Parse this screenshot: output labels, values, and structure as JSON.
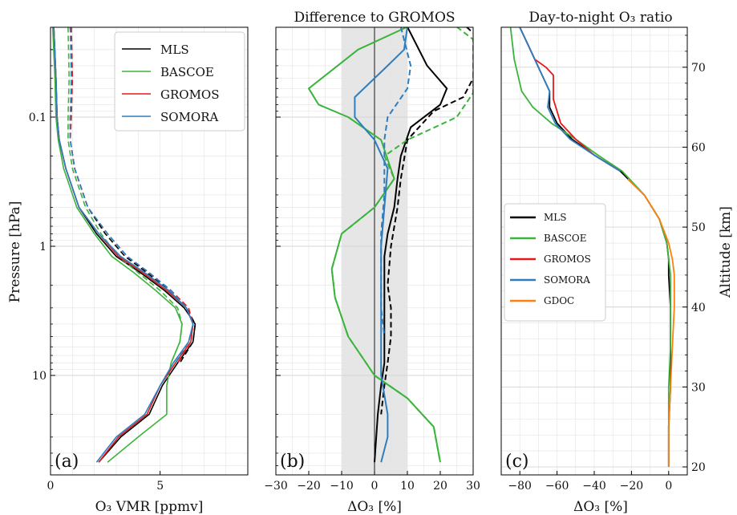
{
  "colors": {
    "MLS": "#000000",
    "BASCOE": "#3cb43c",
    "GROMOS": "#e31a1c",
    "SOMORA": "#2e7ebf",
    "GDOC": "#ff7f0e",
    "shade": "#e6e6e6",
    "grid": "#e3e3e3"
  },
  "panels": {
    "a": {
      "letter": "(a)",
      "title": "",
      "xlabel": "O₃ VMR [ppmv]",
      "ylabel": "Pressure [hPa]",
      "xticks": [
        "0",
        "5"
      ],
      "yticks": [
        "0.1",
        "1",
        "10"
      ],
      "legend": [
        "MLS",
        "BASCOE",
        "GROMOS",
        "SOMORA"
      ]
    },
    "b": {
      "letter": "(b)",
      "title": "Difference to GROMOS",
      "xlabel": "ΔO₃ [%]",
      "xticks": [
        "−30",
        "−20",
        "−10",
        "0",
        "10",
        "20",
        "30"
      ]
    },
    "c": {
      "letter": "(c)",
      "title": "Day-to-night O₃ ratio",
      "xlabel": "ΔO₃ [%]",
      "ylabel": "Altitude [km]",
      "xticks": [
        "−80",
        "−60",
        "−40",
        "−20",
        "0"
      ],
      "yticks": [
        "20",
        "30",
        "40",
        "50",
        "60",
        "70"
      ],
      "legend": [
        "MLS",
        "BASCOE",
        "GROMOS",
        "SOMORA",
        "GDOC"
      ]
    }
  },
  "chart_data": [
    {
      "panel": "a",
      "type": "line",
      "xlabel": "O₃ VMR [ppmv]",
      "ylabel": "Pressure [hPa]",
      "xlim": [
        0,
        9
      ],
      "ylim": [
        50,
        0.02
      ],
      "yscale": "log",
      "series": [
        {
          "name": "MLS",
          "style": "solid",
          "x": [
            0.15,
            0.25,
            0.3,
            0.4,
            0.7,
            1.3,
            2.1,
            3.0,
            4.1,
            5.2,
            6.1,
            6.6,
            6.5,
            5.8,
            5.1,
            4.5,
            3.2,
            2.2
          ],
          "y": [
            0.02,
            0.05,
            0.1,
            0.15,
            0.25,
            0.5,
            0.8,
            1.2,
            1.6,
            2.2,
            3.0,
            4.0,
            5.5,
            8.0,
            12,
            20,
            30,
            47
          ]
        },
        {
          "name": "MLS",
          "style": "dashed",
          "x": [
            0.9,
            1.0,
            0.9,
            0.9,
            1.1,
            1.7,
            2.5,
            3.4,
            4.4,
            5.4,
            6.2,
            6.6,
            6.5,
            5.9
          ],
          "y": [
            0.02,
            0.05,
            0.1,
            0.15,
            0.25,
            0.5,
            0.8,
            1.2,
            1.6,
            2.2,
            3.0,
            4.0,
            5.5,
            8.0
          ]
        },
        {
          "name": "BASCOE",
          "style": "solid",
          "x": [
            0.1,
            0.2,
            0.25,
            0.35,
            0.6,
            1.2,
            2.0,
            2.8,
            3.8,
            4.8,
            5.7,
            6.0,
            5.9,
            5.5,
            5.3,
            5.3,
            4.0,
            2.6
          ],
          "y": [
            0.02,
            0.05,
            0.1,
            0.15,
            0.25,
            0.5,
            0.8,
            1.2,
            1.6,
            2.2,
            3.0,
            4.0,
            5.5,
            8.0,
            12,
            20,
            30,
            47
          ]
        },
        {
          "name": "BASCOE",
          "style": "dashed",
          "x": [
            0.8,
            0.85,
            0.8,
            0.8,
            1.0,
            1.6,
            2.3,
            3.1,
            4.0,
            5.0,
            5.8,
            6.0,
            5.9,
            5.5
          ],
          "y": [
            0.02,
            0.05,
            0.1,
            0.15,
            0.25,
            0.5,
            0.8,
            1.2,
            1.6,
            2.2,
            3.0,
            4.0,
            5.5,
            8.0
          ]
        },
        {
          "name": "GROMOS",
          "style": "solid",
          "x": [
            0.15,
            0.25,
            0.3,
            0.4,
            0.7,
            1.3,
            2.2,
            3.1,
            4.2,
            5.3,
            6.2,
            6.5,
            6.4,
            5.7,
            5.0,
            4.4,
            3.1,
            2.2
          ],
          "y": [
            0.02,
            0.05,
            0.1,
            0.15,
            0.25,
            0.5,
            0.8,
            1.2,
            1.6,
            2.2,
            3.0,
            4.0,
            5.5,
            8.0,
            12,
            20,
            30,
            47
          ]
        },
        {
          "name": "GROMOS",
          "style": "dashed",
          "x": [
            0.95,
            1.0,
            0.95,
            0.9,
            1.1,
            1.7,
            2.6,
            3.5,
            4.5,
            5.5,
            6.3,
            6.5,
            6.4,
            5.8
          ],
          "y": [
            0.02,
            0.05,
            0.1,
            0.15,
            0.25,
            0.5,
            0.8,
            1.2,
            1.6,
            2.2,
            3.0,
            4.0,
            5.5,
            8.0
          ]
        },
        {
          "name": "SOMORA",
          "style": "solid",
          "x": [
            0.15,
            0.25,
            0.3,
            0.4,
            0.7,
            1.3,
            2.2,
            3.2,
            4.3,
            5.4,
            6.2,
            6.5,
            6.3,
            5.6,
            5.0,
            4.3,
            3.0,
            2.1
          ],
          "y": [
            0.02,
            0.05,
            0.1,
            0.15,
            0.25,
            0.5,
            0.8,
            1.2,
            1.6,
            2.2,
            3.0,
            4.0,
            5.5,
            8.0,
            12,
            20,
            30,
            47
          ]
        },
        {
          "name": "SOMORA",
          "style": "dashed",
          "x": [
            0.9,
            0.95,
            0.9,
            0.9,
            1.1,
            1.7,
            2.6,
            3.5,
            4.5,
            5.5,
            6.2,
            6.5,
            6.3,
            5.7
          ],
          "y": [
            0.02,
            0.05,
            0.1,
            0.15,
            0.25,
            0.5,
            0.8,
            1.2,
            1.6,
            2.2,
            3.0,
            4.0,
            5.5,
            8.0
          ]
        }
      ]
    },
    {
      "panel": "b",
      "type": "line",
      "title": "Difference to GROMOS",
      "xlabel": "ΔO₃ [%]",
      "xlim": [
        -30,
        30
      ],
      "ylim": [
        50,
        0.02
      ],
      "yscale": "log",
      "shaded_band": [
        -10,
        10
      ],
      "series": [
        {
          "name": "MLS",
          "style": "solid",
          "x": [
            10,
            16,
            22,
            20,
            11,
            8,
            7,
            6,
            4,
            3,
            3,
            3,
            3,
            3,
            2,
            1,
            0
          ],
          "y": [
            0.02,
            0.04,
            0.06,
            0.08,
            0.12,
            0.2,
            0.3,
            0.5,
            0.8,
            1.2,
            2,
            3,
            5,
            8,
            12,
            20,
            47
          ]
        },
        {
          "name": "MLS",
          "style": "dashed",
          "x": [
            28,
            32,
            32,
            27,
            18,
            10,
            8,
            7,
            5,
            4,
            5,
            5,
            4,
            3,
            2
          ],
          "y": [
            0.02,
            0.025,
            0.04,
            0.07,
            0.09,
            0.15,
            0.3,
            0.5,
            1,
            2,
            3,
            5,
            8,
            12,
            20
          ]
        },
        {
          "name": "BASCOE",
          "style": "solid",
          "x": [
            10,
            -5,
            -20,
            -17,
            -8,
            2,
            6,
            0,
            -10,
            -13,
            -12,
            -8,
            0,
            10,
            18,
            20
          ],
          "y": [
            0.02,
            0.03,
            0.06,
            0.08,
            0.1,
            0.15,
            0.3,
            0.5,
            0.8,
            1.5,
            2.5,
            5,
            10,
            15,
            25,
            47
          ]
        },
        {
          "name": "BASCOE",
          "style": "dashed",
          "x": [
            25,
            30,
            30,
            25,
            10,
            3,
            6,
            0,
            -10,
            -13,
            -12,
            -8,
            0,
            10,
            18,
            20
          ],
          "y": [
            0.02,
            0.025,
            0.065,
            0.1,
            0.15,
            0.2,
            0.3,
            0.5,
            0.8,
            1.5,
            2.5,
            5,
            10,
            15,
            25,
            47
          ]
        },
        {
          "name": "SOMORA",
          "style": "solid",
          "x": [
            10,
            9,
            4,
            -6,
            -6,
            0,
            4,
            3,
            2,
            2,
            2,
            2,
            2,
            4,
            4,
            2
          ],
          "y": [
            0.02,
            0.03,
            0.04,
            0.07,
            0.1,
            0.15,
            0.25,
            0.5,
            1,
            2,
            3,
            5,
            10,
            20,
            30,
            47
          ]
        },
        {
          "name": "SOMORA",
          "style": "dashed",
          "x": [
            8,
            11,
            10,
            4,
            3,
            3,
            3,
            2,
            2,
            2,
            3
          ],
          "y": [
            0.02,
            0.04,
            0.06,
            0.1,
            0.15,
            0.25,
            0.4,
            0.8,
            1.5,
            3,
            5
          ]
        }
      ]
    },
    {
      "panel": "c",
      "type": "line",
      "title": "Day-to-night O₃ ratio",
      "xlabel": "ΔO₃ [%]",
      "ylabel": "Altitude [km]",
      "xlim": [
        -90,
        10
      ],
      "ylim": [
        19,
        75
      ],
      "series": [
        {
          "name": "MLS",
          "x": [
            -80,
            -76,
            -72,
            -68,
            -64,
            -64,
            -60,
            -52,
            -40,
            -26,
            -13,
            -5,
            -1,
            0,
            0,
            1,
            1,
            1,
            0,
            0
          ],
          "y": [
            75,
            73,
            71,
            69,
            67,
            65,
            63,
            61,
            59,
            57,
            54,
            51,
            48,
            46,
            44,
            40,
            35,
            30,
            25,
            20
          ]
        },
        {
          "name": "BASCOE",
          "x": [
            -85,
            -83,
            -79,
            -73,
            -63,
            -50,
            -38,
            -25,
            -13,
            -5,
            -1,
            0,
            1,
            1,
            1,
            0,
            0
          ],
          "y": [
            75,
            71,
            67,
            65,
            63,
            61,
            59,
            57,
            54,
            51,
            48,
            46,
            44,
            40,
            35,
            30,
            25
          ]
        },
        {
          "name": "GROMOS",
          "x": [
            -80,
            -76,
            -72,
            -66,
            -62,
            -62,
            -58,
            -50,
            -40,
            -26
          ],
          "y": [
            75,
            73,
            71,
            70,
            69,
            66,
            63,
            61,
            59,
            57
          ]
        },
        {
          "name": "SOMORA",
          "x": [
            -80,
            -76,
            -72,
            -68,
            -64,
            -65,
            -61,
            -53,
            -40,
            -26
          ],
          "y": [
            75,
            73,
            71,
            69,
            67,
            65,
            63,
            61,
            59,
            57
          ]
        },
        {
          "name": "GDOC",
          "x": [
            -22,
            -13,
            -5,
            0,
            2,
            3,
            3,
            2,
            1,
            0,
            0
          ],
          "y": [
            56,
            54,
            51,
            48,
            46,
            44,
            40,
            35,
            30,
            25,
            20
          ]
        }
      ]
    }
  ]
}
